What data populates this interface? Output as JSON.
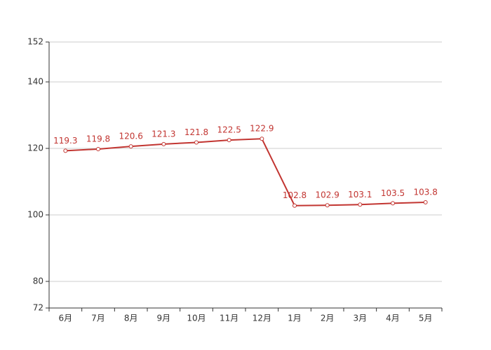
{
  "chart_data": {
    "type": "line",
    "categories": [
      "6月",
      "7月",
      "8月",
      "9月",
      "10月",
      "11月",
      "12月",
      "1月",
      "2月",
      "3月",
      "4月",
      "5月"
    ],
    "values": [
      119.3,
      119.8,
      120.6,
      121.3,
      121.8,
      122.5,
      122.9,
      102.8,
      102.9,
      103.1,
      103.5,
      103.8
    ],
    "color": "#c23531",
    "ylim": [
      72,
      152
    ],
    "yticks": [
      72,
      80,
      100,
      120,
      140,
      152
    ],
    "grid": true
  }
}
